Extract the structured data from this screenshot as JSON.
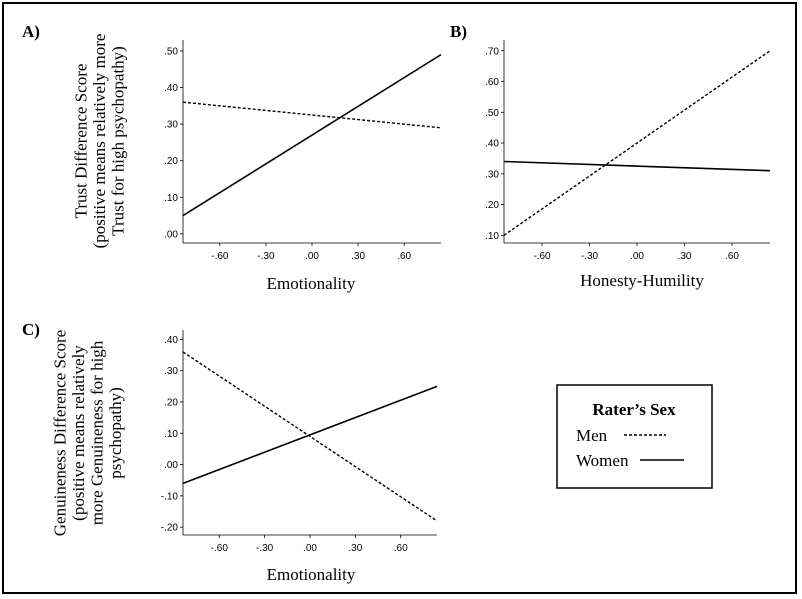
{
  "chart_data": [
    {
      "panel": "A)",
      "type": "line",
      "xlabel": "Emotionality",
      "ylabel_lines": [
        "Trust Difference Score",
        "(positive means relatively more",
        "Trust for high psychopathy)"
      ],
      "x_ticks": [
        "-.60",
        "-.30",
        ".00",
        ".30",
        ".60"
      ],
      "y_ticks": [
        ".00",
        ".10",
        ".20",
        ".30",
        ".40",
        ".50"
      ],
      "xlim": [
        -0.84,
        0.84
      ],
      "ylim": [
        -0.025,
        0.53
      ],
      "series": [
        {
          "name": "Men",
          "style": "dashed",
          "x": [
            -0.84,
            0.84
          ],
          "y": [
            0.36,
            0.29
          ]
        },
        {
          "name": "Women",
          "style": "solid",
          "x": [
            -0.84,
            0.84
          ],
          "y": [
            0.05,
            0.49
          ]
        }
      ]
    },
    {
      "panel": "B)",
      "type": "line",
      "xlabel": "Honesty-Humility",
      "ylabel_lines": [],
      "x_ticks": [
        "-.60",
        "-.30",
        ".00",
        ".30",
        ".60"
      ],
      "y_ticks": [
        ".10",
        ".20",
        ".30",
        ".40",
        ".50",
        ".60",
        ".70"
      ],
      "xlim": [
        -0.84,
        0.84
      ],
      "ylim": [
        0.075,
        0.735
      ],
      "series": [
        {
          "name": "Men",
          "style": "dashed",
          "x": [
            -0.84,
            0.84
          ],
          "y": [
            0.1,
            0.7
          ]
        },
        {
          "name": "Women",
          "style": "solid",
          "x": [
            -0.84,
            0.84
          ],
          "y": [
            0.34,
            0.31
          ]
        }
      ]
    },
    {
      "panel": "C)",
      "type": "line",
      "xlabel": "Emotionality",
      "ylabel_lines": [
        "Genuineness Difference Score",
        "(positive means relatively",
        "more Genuineness for high",
        "psychopathy)"
      ],
      "x_ticks": [
        "-.60",
        "-.30",
        ".00",
        ".30",
        ".60"
      ],
      "y_ticks": [
        "-.20",
        "-.10",
        ".00",
        ".10",
        ".20",
        ".30",
        ".40"
      ],
      "xlim": [
        -0.84,
        0.84
      ],
      "ylim": [
        -0.225,
        0.43
      ],
      "series": [
        {
          "name": "Men",
          "style": "dashed",
          "x": [
            -0.84,
            0.84
          ],
          "y": [
            0.36,
            -0.18
          ]
        },
        {
          "name": "Women",
          "style": "solid",
          "x": [
            -0.84,
            0.84
          ],
          "y": [
            -0.06,
            0.25
          ]
        }
      ]
    }
  ],
  "legend": {
    "title": "Rater’s Sex",
    "items": [
      {
        "label": "Men",
        "style": "dashed"
      },
      {
        "label": "Women",
        "style": "solid"
      }
    ]
  },
  "colors": {
    "line": "#000000",
    "axis": "#000000",
    "background": "#ffffff"
  }
}
